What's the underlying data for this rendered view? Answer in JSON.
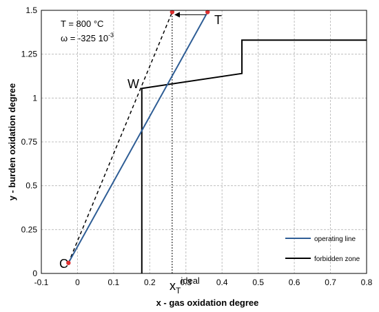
{
  "chart_data": {
    "type": "line",
    "xlabel": "x - gas oxidation degree",
    "ylabel": "y - burden oxidation degree",
    "xlim": [
      -0.1,
      0.8
    ],
    "ylim": [
      0,
      1.5
    ],
    "xticks": [
      -0.1,
      0,
      0.1,
      0.2,
      0.3,
      0.4,
      0.5,
      0.6,
      0.7,
      0.8
    ],
    "yticks": [
      0,
      0.25,
      0.5,
      0.75,
      1,
      1.25,
      1.5
    ],
    "xtick_labels": [
      "-0.1",
      "0",
      "0.1",
      "0.2",
      "0.3",
      "0.4",
      "0.5",
      "0.6",
      "0.7",
      "0.8"
    ],
    "ytick_labels": [
      "0",
      "0.25",
      "0.5",
      "0.75",
      "1",
      "1.25",
      "1.5"
    ],
    "grid": true,
    "legend_position": "bottom-right",
    "series": [
      {
        "name": "operating line",
        "color": "#2e5d95",
        "style": "solid",
        "points": [
          [
            -0.025,
            0.06
          ],
          [
            0.36,
            1.49
          ]
        ]
      },
      {
        "name": "forbidden zone",
        "color": "#000000",
        "style": "solid",
        "points": [
          [
            0.178,
            0
          ],
          [
            0.178,
            1.055
          ],
          [
            0.455,
            1.14
          ],
          [
            0.455,
            1.33
          ],
          [
            0.8,
            1.33
          ]
        ]
      }
    ],
    "ideal_line": {
      "color": "#000000",
      "style": "dashed",
      "points": [
        [
          -0.025,
          0.06
        ],
        [
          0.262,
          1.49
        ]
      ]
    },
    "x_ideal_marker": {
      "color": "#000000",
      "style": "dotted",
      "x": 0.262,
      "y_range": [
        0,
        1.49
      ]
    },
    "arrow": {
      "color": "#000000",
      "from": [
        0.355,
        1.475
      ],
      "to": [
        0.268,
        1.475
      ]
    },
    "points": [
      {
        "label": "C",
        "x": -0.025,
        "y": 0.06,
        "color": "#e03030"
      },
      {
        "label": "",
        "x": 0.262,
        "y": 1.49,
        "color": "#e03030"
      },
      {
        "label": "",
        "x": 0.36,
        "y": 1.49,
        "color": "#e03030"
      }
    ],
    "labels": {
      "C": "C",
      "W": "W",
      "T": "T",
      "x_ideal_main": "x",
      "x_ideal_sub": "T",
      "x_ideal_sup": "ideal"
    },
    "annotations": {
      "temperature": "T = 800 °C",
      "omega_main": "ω = -325 10",
      "omega_exp": "-3"
    }
  }
}
